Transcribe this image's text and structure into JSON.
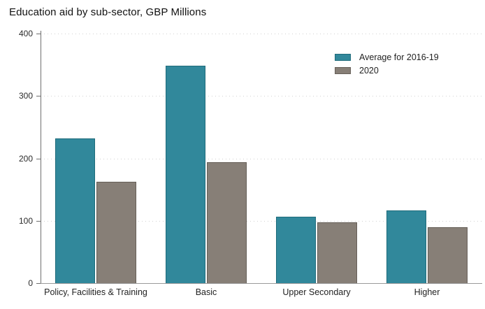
{
  "chart_data": {
    "type": "bar",
    "title": "Education aid by sub-sector, GBP Millions",
    "categories": [
      "Policy, Facilities & Training",
      "Basic",
      "Upper Secondary",
      "Higher"
    ],
    "series": [
      {
        "name": "Average for 2016-19",
        "color": "#31889b",
        "border_color": "#1f6b7b",
        "values": [
          232,
          348,
          107,
          116
        ]
      },
      {
        "name": "2020",
        "color": "#877f77",
        "border_color": "#665f58",
        "values": [
          163,
          194,
          97,
          90
        ]
      }
    ],
    "xlabel": "",
    "ylabel": "",
    "ylim": [
      0,
      400
    ],
    "yticks": [
      400,
      300,
      200,
      100,
      0
    ],
    "grid": "horizontal-dotted",
    "legend_position": "top-right",
    "colors": {
      "background": "#ffffff",
      "axis_line": "#6e6e6e",
      "baseline": "#9a9a9a",
      "gridline": "#d2d2d2",
      "text": "#222222"
    }
  }
}
